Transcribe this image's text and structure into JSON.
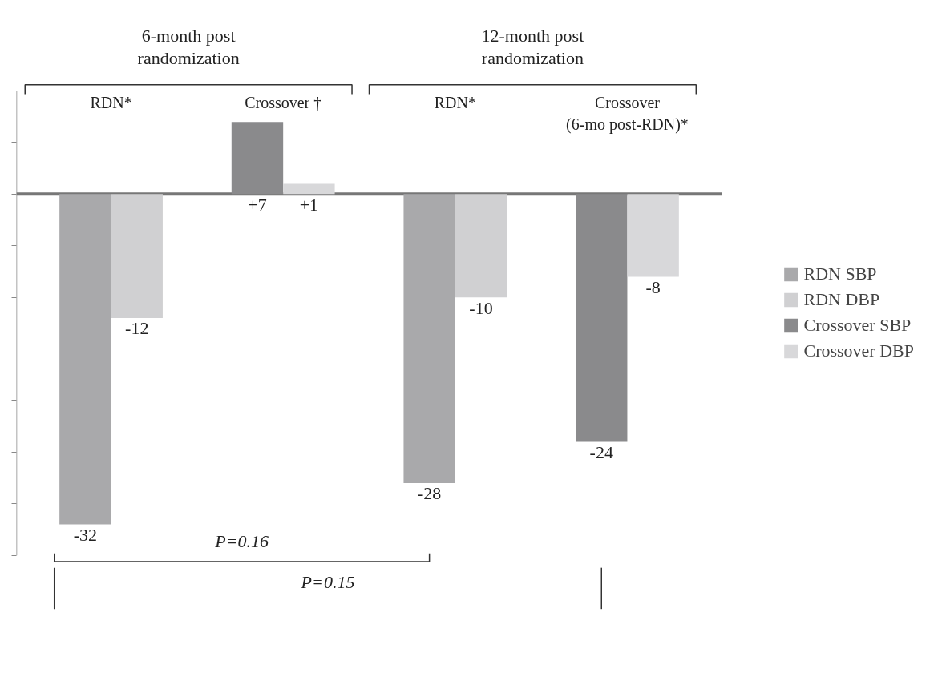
{
  "chart_data": {
    "type": "bar",
    "categories": [
      "RDN*",
      "Crossover †",
      "RDN*",
      "Crossover (6-mo post-RDN)*"
    ],
    "series": [
      {
        "name": "RDN SBP",
        "color": "#a9a9ab",
        "values": [
          -32,
          null,
          -28,
          null
        ],
        "value_labels": [
          "-32",
          null,
          "-28",
          null
        ]
      },
      {
        "name": "RDN DBP",
        "color": "#d0d0d2",
        "values": [
          -12,
          null,
          -10,
          null
        ],
        "value_labels": [
          "-12",
          null,
          "-10",
          null
        ]
      },
      {
        "name": "Crossover SBP",
        "color": "#8a8a8c",
        "values": [
          null,
          7,
          null,
          -24
        ],
        "value_labels": [
          null,
          "+7",
          null,
          "-24"
        ]
      },
      {
        "name": "Crossover DBP",
        "color": "#d8d8da",
        "values": [
          null,
          1,
          null,
          -8
        ],
        "value_labels": [
          null,
          "+1",
          null,
          "-8"
        ]
      }
    ],
    "ylim": [
      -35,
      10
    ],
    "yticks": [
      {
        "value": -35,
        "label": null
      },
      {
        "value": -30,
        "label": null
      },
      {
        "value": -25,
        "label": null
      },
      {
        "value": -20,
        "label": null
      },
      {
        "value": -15,
        "label": null
      },
      {
        "value": -10,
        "label": null
      },
      {
        "value": -5,
        "label": null
      },
      {
        "value": 0,
        "label": null
      },
      {
        "value": 5,
        "label": null
      },
      {
        "value": 10,
        "label": null
      }
    ],
    "annotations": [
      "6-month post randomization",
      "12-month post randomization",
      "P=0.16",
      "P=0.15"
    ],
    "legend": "right",
    "grid": false
  }
}
